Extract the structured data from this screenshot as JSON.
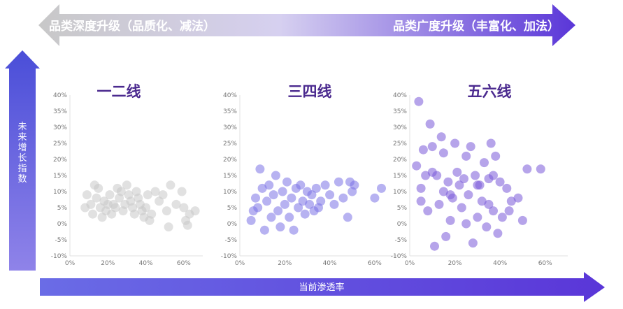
{
  "banner": {
    "left_label": "品类深度升级（品质化、减法）",
    "right_label": "品类广度升级（丰富化、加法）",
    "left_color": "#b8b8b8",
    "right_color": "#5a36d8"
  },
  "y_axis_label": "未来增长指数",
  "x_axis_label": "当前渗透率",
  "chart_data": [
    {
      "type": "scatter",
      "title": "一二线",
      "color": "#c8c8c8",
      "xlim": [
        0,
        70
      ],
      "ylim": [
        -10,
        40
      ],
      "x_ticks": [
        "0%",
        "20%",
        "40%",
        "60%"
      ],
      "y_ticks": [
        "40%",
        "35%",
        "30%",
        "25%",
        "20%",
        "15%",
        "10%",
        "5%",
        "0%",
        "-5%",
        "-10%"
      ],
      "points": [
        [
          8,
          5
        ],
        [
          9,
          9
        ],
        [
          11,
          6
        ],
        [
          12,
          3
        ],
        [
          13,
          12
        ],
        [
          14,
          8
        ],
        [
          15,
          11
        ],
        [
          16,
          5
        ],
        [
          17,
          2
        ],
        [
          18,
          7
        ],
        [
          19,
          4
        ],
        [
          20,
          6
        ],
        [
          21,
          9
        ],
        [
          22,
          3
        ],
        [
          23,
          6
        ],
        [
          24,
          5
        ],
        [
          25,
          11
        ],
        [
          26,
          8
        ],
        [
          27,
          10
        ],
        [
          28,
          4
        ],
        [
          29,
          6
        ],
        [
          30,
          12
        ],
        [
          31,
          9
        ],
        [
          32,
          7
        ],
        [
          33,
          5
        ],
        [
          34,
          3
        ],
        [
          35,
          10
        ],
        [
          36,
          8
        ],
        [
          37,
          6
        ],
        [
          38,
          4
        ],
        [
          39,
          2
        ],
        [
          40,
          5
        ],
        [
          41,
          9
        ],
        [
          42,
          1
        ],
        [
          43,
          3
        ],
        [
          45,
          10
        ],
        [
          47,
          7
        ],
        [
          49,
          9
        ],
        [
          51,
          4
        ],
        [
          52,
          -1
        ],
        [
          53,
          12
        ],
        [
          56,
          6
        ],
        [
          59,
          10
        ],
        [
          60,
          5
        ],
        [
          61,
          1
        ],
        [
          62,
          -0.5
        ],
        [
          63,
          3
        ],
        [
          66,
          4
        ]
      ]
    },
    {
      "type": "scatter",
      "title": "三四线",
      "color": "#7b73e6",
      "xlim": [
        0,
        70
      ],
      "ylim": [
        -10,
        40
      ],
      "x_ticks": [
        "0%",
        "20%",
        "40%",
        "60%"
      ],
      "y_ticks": [
        "40%",
        "35%",
        "30%",
        "25%",
        "20%",
        "15%",
        "10%",
        "5%",
        "0%",
        "-5%",
        "-10%"
      ],
      "points": [
        [
          5,
          1
        ],
        [
          6,
          4
        ],
        [
          7,
          8
        ],
        [
          8,
          5
        ],
        [
          9,
          17
        ],
        [
          10,
          11
        ],
        [
          11,
          -2
        ],
        [
          12,
          7
        ],
        [
          13,
          12
        ],
        [
          14,
          2
        ],
        [
          15,
          9
        ],
        [
          16,
          15
        ],
        [
          17,
          4
        ],
        [
          18,
          -1
        ],
        [
          19,
          10
        ],
        [
          20,
          6
        ],
        [
          21,
          13
        ],
        [
          22,
          2
        ],
        [
          23,
          8
        ],
        [
          24,
          -2
        ],
        [
          25,
          11
        ],
        [
          26,
          5
        ],
        [
          27,
          12
        ],
        [
          28,
          7
        ],
        [
          29,
          3
        ],
        [
          30,
          10
        ],
        [
          31,
          6
        ],
        [
          32,
          9
        ],
        [
          33,
          4
        ],
        [
          34,
          11
        ],
        [
          35,
          5
        ],
        [
          36,
          7
        ],
        [
          38,
          12
        ],
        [
          40,
          9
        ],
        [
          42,
          6
        ],
        [
          44,
          13
        ],
        [
          46,
          8
        ],
        [
          48,
          2
        ],
        [
          49,
          13
        ],
        [
          50,
          10
        ],
        [
          51,
          12
        ],
        [
          60,
          8
        ],
        [
          63,
          11
        ]
      ]
    },
    {
      "type": "scatter",
      "title": "五六线",
      "color": "#7a5ad8",
      "xlim": [
        0,
        70
      ],
      "ylim": [
        -10,
        40
      ],
      "x_ticks": [
        "0%",
        "20%",
        "40%",
        "60%"
      ],
      "y_ticks": [
        "40%",
        "35%",
        "30%",
        "25%",
        "20%",
        "15%",
        "10%",
        "5%",
        "0%",
        "-5%",
        "-10%"
      ],
      "points": [
        [
          4,
          38
        ],
        [
          5,
          11
        ],
        [
          6,
          23
        ],
        [
          7,
          15
        ],
        [
          8,
          4
        ],
        [
          9,
          31
        ],
        [
          10,
          24
        ],
        [
          11,
          -7
        ],
        [
          12,
          15
        ],
        [
          13,
          6
        ],
        [
          14,
          27
        ],
        [
          15,
          10
        ],
        [
          16,
          -4
        ],
        [
          17,
          13
        ],
        [
          18,
          1
        ],
        [
          19,
          8
        ],
        [
          20,
          25
        ],
        [
          21,
          16
        ],
        [
          22,
          12
        ],
        [
          23,
          5
        ],
        [
          24,
          14
        ],
        [
          25,
          0
        ],
        [
          26,
          9
        ],
        [
          27,
          24
        ],
        [
          28,
          -6
        ],
        [
          29,
          15
        ],
        [
          30,
          2
        ],
        [
          31,
          12
        ],
        [
          32,
          7
        ],
        [
          33,
          19
        ],
        [
          34,
          -1
        ],
        [
          35,
          14
        ],
        [
          36,
          25
        ],
        [
          37,
          4
        ],
        [
          38,
          21
        ],
        [
          39,
          -3
        ],
        [
          40,
          13
        ],
        [
          41,
          2
        ],
        [
          43,
          11
        ],
        [
          45,
          7
        ],
        [
          48,
          8
        ],
        [
          50,
          1
        ],
        [
          52,
          17
        ],
        [
          3,
          18
        ],
        [
          5,
          7
        ],
        [
          10,
          16
        ],
        [
          15,
          22
        ],
        [
          18,
          9
        ],
        [
          25,
          21
        ],
        [
          30,
          12
        ],
        [
          35,
          6
        ],
        [
          37,
          15
        ],
        [
          44,
          4
        ],
        [
          58,
          17
        ]
      ]
    }
  ]
}
